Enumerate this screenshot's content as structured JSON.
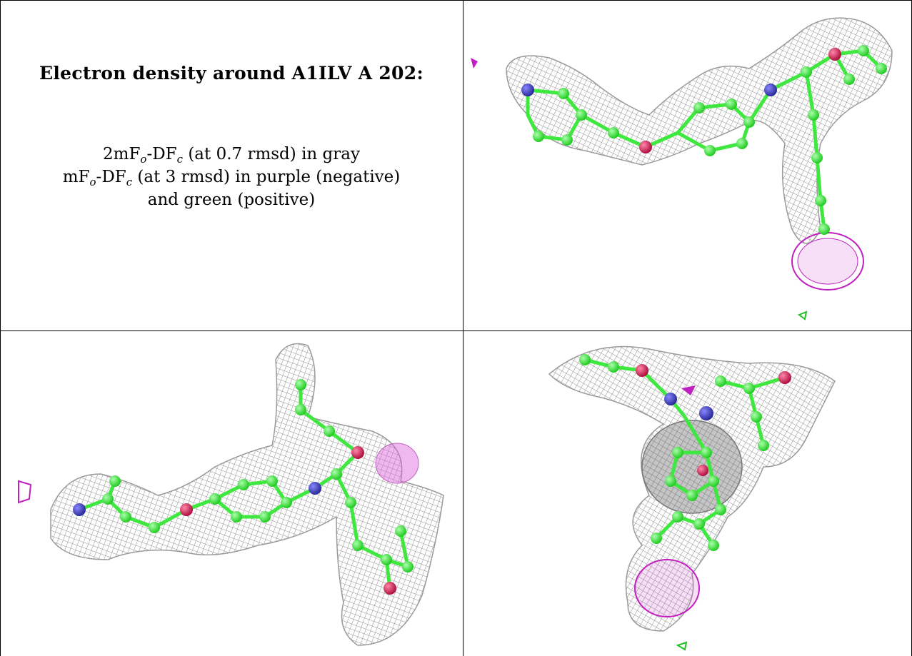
{
  "header": {
    "title": "Electron density around A1ILV A 202:"
  },
  "legend": {
    "line1_prefix": "2mF",
    "line1_sub1": "o",
    "line1_mid": "-DF",
    "line1_sub2": "c",
    "line1_suffix": " (at 0.7 rmsd) in gray",
    "line2_prefix": "mF",
    "line2_sub1": "o",
    "line2_mid": "-DF",
    "line2_sub2": "c",
    "line2_suffix": " (at 3 rmsd) in purple (negative)",
    "line3": "and green (positive)"
  },
  "colors": {
    "mesh_gray": "#8f8f8f",
    "carbon_green": "#3ee83e",
    "nitrogen_blue": "#3a3ab8",
    "oxygen_red": "#d62a5a",
    "negative_purple": "#c020c0",
    "positive_green": "#20c020",
    "border": "#000000"
  },
  "panels": [
    {
      "name": "view-top-right"
    },
    {
      "name": "view-bottom-left"
    },
    {
      "name": "view-bottom-right"
    }
  ]
}
